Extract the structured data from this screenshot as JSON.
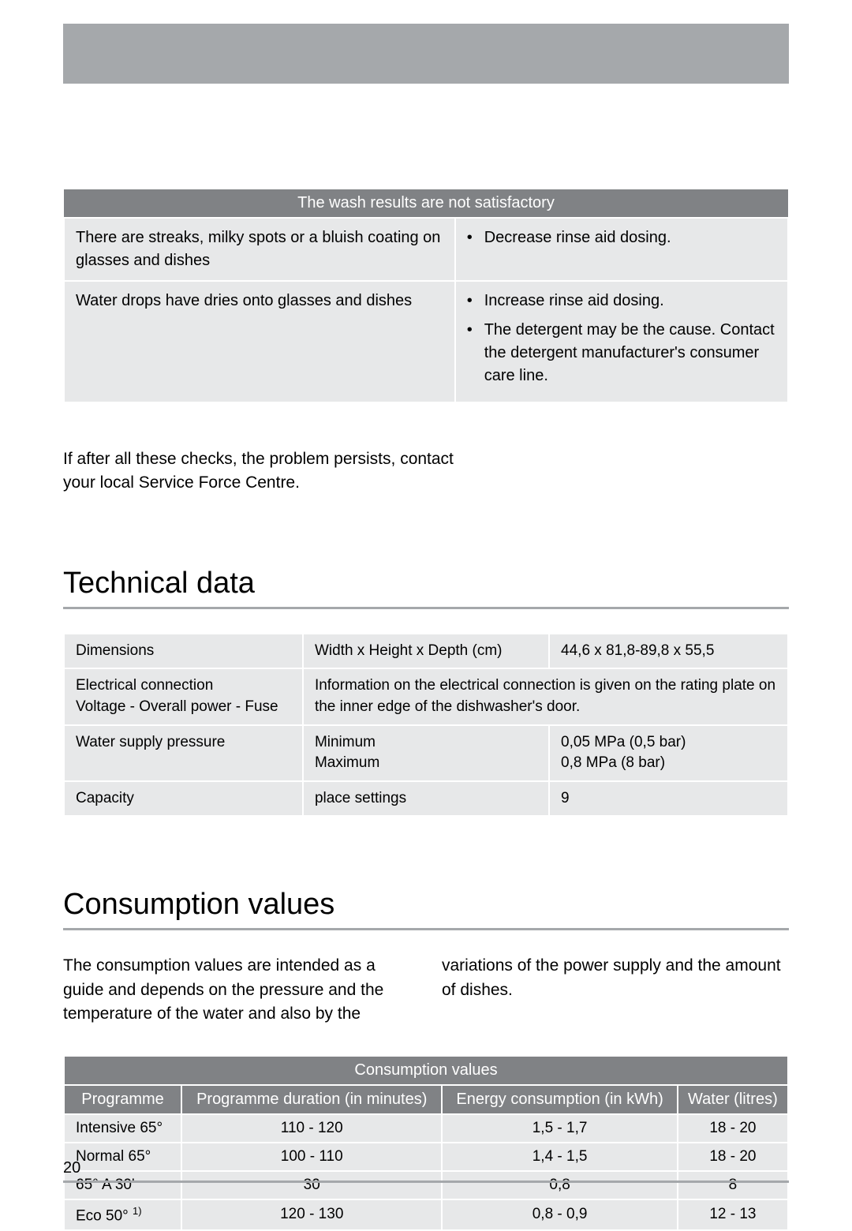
{
  "colors": {
    "header_bar": "#a5a8ab",
    "table_header_bg": "#808285",
    "table_header_text": "#ffffff",
    "cell_bg": "#e7e8e9",
    "text": "#000000",
    "rule": "#a5a8ab",
    "page_bg": "#ffffff"
  },
  "wash_table": {
    "header": "The wash results are not satisfactory",
    "rows": [
      {
        "problem": "There are streaks, milky spots or a bluish coating on glasses and dishes",
        "bullets": [
          "Decrease rinse aid dosing."
        ]
      },
      {
        "problem": "Water drops have dries onto glasses and dishes",
        "bullets": [
          "Increase rinse aid dosing.",
          "The detergent may be the cause. Contact the detergent manufacturer's consumer care line."
        ]
      }
    ]
  },
  "after_text": "If after all these checks, the problem persists, contact your local Service Force Centre.",
  "tech": {
    "heading": "Technical data",
    "rows": [
      {
        "cells": [
          "Dimensions",
          "Width x Height x Depth (cm)",
          "44,6 x 81,8-89,8 x 55,5"
        ]
      },
      {
        "cells": [
          "Electrical connection\nVoltage - Overall power - Fuse",
          "Information on the electrical connection is given on the rating plate on the inner edge of the dishwasher's door."
        ],
        "colspan_last": 2
      },
      {
        "cells": [
          "Water supply pressure",
          "Minimum\nMaximum",
          "0,05 MPa (0,5 bar)\n0,8 MPa (8 bar)"
        ]
      },
      {
        "cells": [
          "Capacity",
          "place settings",
          "9"
        ]
      }
    ]
  },
  "consumption": {
    "heading": "Consumption values",
    "intro": "The consumption values are intended as a guide and depends on the pressure and the temperature of the water and also by the variations of the power supply and the amount of dishes.",
    "title": "Consumption values",
    "columns": [
      "Programme",
      "Programme duration (in minutes)",
      "Energy consumption (in kWh)",
      "Water (litres)"
    ],
    "rows": [
      {
        "programme": "Intensive 65°",
        "duration": "110 - 120",
        "energy": "1,5 - 1,7",
        "water": "18 - 20",
        "footnote": ""
      },
      {
        "programme": "Normal 65°",
        "duration": "100 - 110",
        "energy": "1,4 - 1,5",
        "water": "18 - 20",
        "footnote": ""
      },
      {
        "programme": "65° A 30'",
        "duration": "30",
        "energy": "0,8",
        "water": "8",
        "footnote": ""
      },
      {
        "programme": "Eco 50°",
        "duration": "120 - 130",
        "energy": "0,8 - 0,9",
        "water": "12 - 13",
        "footnote": "1)"
      }
    ]
  },
  "page_number": "20"
}
